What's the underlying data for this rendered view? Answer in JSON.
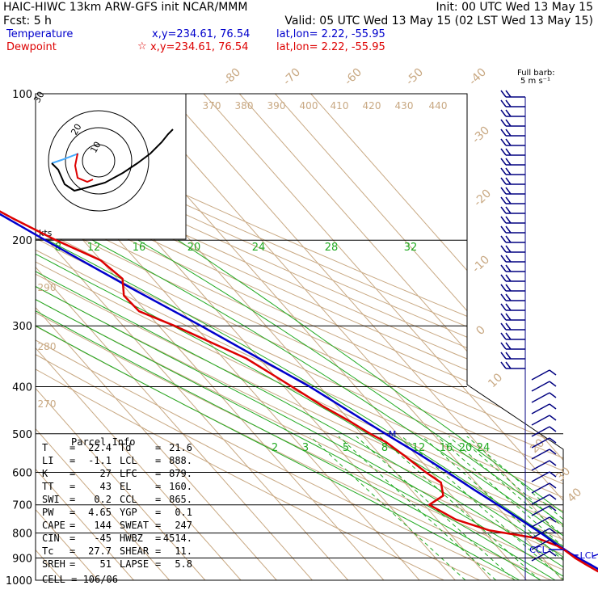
{
  "header": {
    "title": "HAIC-HIWC 13km ARW-GFS init   NCAR/MMM",
    "init": "Init: 00 UTC Wed 13 May 15",
    "fcst": "Fcst:   5 h",
    "valid": "Valid: 05 UTC Wed 13 May 15 (02 LST Wed 13 May 15)",
    "temp_label": "Temperature",
    "temp_xy": "x,y=234.61, 76.54",
    "temp_latlon": "lat,lon=  2.22, -55.95",
    "dew_label": "Dewpoint",
    "dew_marker": "☆",
    "dew_xy": "x,y=234.61, 76.54",
    "dew_latlon": "lat,lon=  2.22, -55.95"
  },
  "barb_legend": {
    "line1": "Full barb:",
    "line2": "5 m s⁻¹"
  },
  "hodo_labels": {
    "kts": "kts",
    "r10": "10",
    "r20": "20",
    "r30": "30"
  },
  "parcel": {
    "title": "Parcel Info",
    "rows": [
      {
        "l1": "T",
        "v1": "22.4",
        "l2": "Td",
        "v2": "21.6"
      },
      {
        "l1": "LI",
        "v1": "-1.1",
        "l2": "LCL",
        "v2": "888."
      },
      {
        "l1": "K",
        "v1": "27",
        "l2": "LFC",
        "v2": "879."
      },
      {
        "l1": "TT",
        "v1": "43",
        "l2": "EL",
        "v2": "160."
      },
      {
        "l1": "SWI",
        "v1": "0.2",
        "l2": "CCL",
        "v2": "865."
      },
      {
        "l1": "PW",
        "v1": "4.65",
        "l2": "YGP",
        "v2": "0.1"
      },
      {
        "l1": "CAPE",
        "v1": "144",
        "l2": "SWEAT",
        "v2": "247"
      },
      {
        "l1": "CIN",
        "v1": "-45",
        "l2": "HWBZ",
        "v2": "4514."
      },
      {
        "l1": "Tc",
        "v1": "27.7",
        "l2": "SHEAR",
        "v2": "11."
      },
      {
        "l1": "SREH",
        "v1": "51",
        "l2": "LAPSE",
        "v2": "5.8"
      }
    ],
    "cell": "CELL = 106/06"
  },
  "chart_data": {
    "type": "line",
    "title": "",
    "ylabel": "",
    "xlabel": "",
    "y_axis": {
      "scale": "log-pressure",
      "range_hPa": [
        1000,
        100
      ],
      "ticks": [
        100,
        200,
        300,
        400,
        500,
        600,
        700,
        800,
        900,
        1000
      ]
    },
    "isotherm_labels": [
      "-80",
      "-70",
      "-60",
      "-50",
      "-40",
      "-30",
      "-20",
      "-10",
      "0",
      "10",
      "20",
      "30",
      "40"
    ],
    "potential_temp_labels": [
      "370",
      "380",
      "390",
      "400",
      "410",
      "420",
      "430",
      "440",
      "290",
      "280",
      "270"
    ],
    "mixing_ratio_labels_upper": [
      "8",
      "12",
      "16",
      "20",
      "24",
      "28",
      "32"
    ],
    "mixing_ratio_labels_lower": [
      "2",
      "3",
      "5",
      "8",
      "12",
      "16",
      "20",
      "24"
    ],
    "level_labels": [
      {
        "text": "EL",
        "pressure": 160
      },
      {
        "text": "M",
        "pressure": 500
      },
      {
        "text": "CCL",
        "pressure": 865
      },
      {
        "text": "LCL",
        "pressure": 888
      },
      {
        "text": "LFC",
        "pressure": 879
      }
    ],
    "series": [
      {
        "name": "Temperature",
        "color": "#0000cc",
        "points": [
          [
            960,
            23.4
          ],
          [
            930,
            21.8
          ],
          [
            900,
            20.0
          ],
          [
            880,
            18.9
          ],
          [
            850,
            17.6
          ],
          [
            800,
            15.7
          ],
          [
            750,
            13.3
          ],
          [
            700,
            10.6
          ],
          [
            650,
            7.6
          ],
          [
            600,
            4.6
          ],
          [
            550,
            1.1
          ],
          [
            500,
            -3.3
          ],
          [
            450,
            -7.8
          ],
          [
            400,
            -12.8
          ],
          [
            350,
            -20.0
          ],
          [
            300,
            -28.2
          ],
          [
            250,
            -38.6
          ],
          [
            200,
            -50.6
          ],
          [
            175,
            -57.4
          ],
          [
            160,
            -61.6
          ],
          [
            140,
            -69.3
          ],
          [
            120,
            -73.6
          ],
          [
            100,
            -76.6
          ]
        ]
      },
      {
        "name": "Dewpoint",
        "color": "#dd0000",
        "points": [
          [
            960,
            22.2
          ],
          [
            930,
            20.6
          ],
          [
            900,
            19.1
          ],
          [
            870,
            18.2
          ],
          [
            850,
            17.1
          ],
          [
            820,
            13.4
          ],
          [
            790,
            2.0
          ],
          [
            750,
            -4.8
          ],
          [
            700,
            -8.6
          ],
          [
            670,
            -2.4
          ],
          [
            630,
            0.2
          ],
          [
            600,
            -1.5
          ],
          [
            550,
            -3.6
          ],
          [
            520,
            -5.2
          ],
          [
            500,
            -7.5
          ],
          [
            470,
            -10.3
          ],
          [
            440,
            -13.8
          ],
          [
            400,
            -17.8
          ],
          [
            380,
            -20.0
          ],
          [
            350,
            -23.6
          ],
          [
            300,
            -35.6
          ],
          [
            280,
            -41.9
          ],
          [
            260,
            -42.3
          ],
          [
            240,
            -38.5
          ],
          [
            220,
            -40.1
          ],
          [
            200,
            -47.6
          ],
          [
            180,
            -54.4
          ],
          [
            160,
            -61.2
          ],
          [
            150,
            -67.0
          ],
          [
            140,
            -74.2
          ],
          [
            130,
            -79.9
          ],
          [
            120,
            -82.9
          ],
          [
            110,
            -84.9
          ],
          [
            100,
            -81.2
          ]
        ]
      }
    ],
    "wind_barbs": {
      "unit": "m s-1",
      "full_barb": 5
    }
  },
  "colors": {
    "temperature": "#0000cc",
    "dewpoint": "#dd0000",
    "isotherm": "#c8a882",
    "mixing_ratio": "#22aa22",
    "barb": "#000080"
  }
}
